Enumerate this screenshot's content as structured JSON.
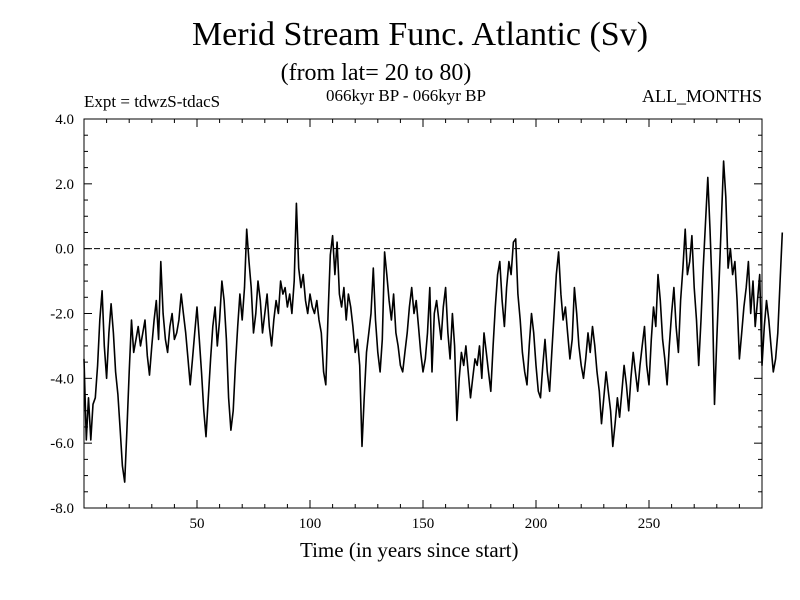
{
  "chart_data": {
    "type": "line",
    "title": "Merid Stream Func. Atlantic (Sv)",
    "subtitle": "(from lat= 20 to 80)",
    "annotations": {
      "expt": "Expt = tdwzS-tdacS",
      "period": "066kyr BP - 066kyr BP",
      "months": "ALL_MONTHS"
    },
    "xlabel": "Time (in years since start)",
    "ylabel": "",
    "xlim": [
      0,
      300
    ],
    "ylim": [
      -8.0,
      4.0
    ],
    "x_ticks": [
      50,
      100,
      150,
      200,
      250
    ],
    "x_tick_labels": [
      "50",
      "100",
      "150",
      "200",
      "250"
    ],
    "y_ticks": [
      -8,
      -6,
      -4,
      -2,
      0,
      2,
      4
    ],
    "y_tick_labels": [
      "-8.0",
      "-6.0",
      "-4.0",
      "-2.0",
      "0.0",
      "2.0",
      "4.0"
    ],
    "reference_line": {
      "y": 0.0,
      "style": "dashed"
    },
    "grid": false,
    "x_start": 0,
    "x_step": 1,
    "values": [
      -3.4,
      -5.9,
      -4.6,
      -5.9,
      -4.8,
      -4.6,
      -3.6,
      -2.2,
      -1.3,
      -3.0,
      -4.0,
      -2.6,
      -1.7,
      -2.6,
      -3.8,
      -4.5,
      -5.6,
      -6.7,
      -7.2,
      -5.6,
      -3.8,
      -2.2,
      -3.2,
      -2.8,
      -2.4,
      -3.0,
      -2.6,
      -2.2,
      -3.3,
      -3.9,
      -3.0,
      -2.2,
      -1.6,
      -2.8,
      -0.4,
      -2.0,
      -2.8,
      -3.2,
      -2.4,
      -2.0,
      -2.8,
      -2.6,
      -2.2,
      -1.4,
      -2.0,
      -2.6,
      -3.4,
      -4.2,
      -3.4,
      -2.6,
      -1.8,
      -2.8,
      -3.8,
      -5.0,
      -5.8,
      -4.6,
      -3.4,
      -2.4,
      -1.8,
      -3.0,
      -2.2,
      -1.0,
      -1.6,
      -2.8,
      -4.6,
      -5.6,
      -5.0,
      -3.6,
      -2.4,
      -1.4,
      -2.2,
      -1.2,
      0.6,
      -0.4,
      -1.2,
      -2.6,
      -2.0,
      -1.0,
      -1.6,
      -2.6,
      -2.0,
      -1.4,
      -2.4,
      -3.0,
      -2.2,
      -1.6,
      -2.0,
      -1.0,
      -1.4,
      -1.2,
      -1.8,
      -1.4,
      -2.0,
      -1.0,
      1.4,
      -0.6,
      -1.2,
      -0.8,
      -1.6,
      -2.0,
      -1.4,
      -1.8,
      -2.0,
      -1.6,
      -2.2,
      -2.6,
      -3.8,
      -4.2,
      -2.0,
      -0.2,
      0.4,
      -0.8,
      0.2,
      -1.4,
      -1.8,
      -1.2,
      -2.2,
      -1.4,
      -1.8,
      -2.4,
      -3.2,
      -2.8,
      -3.6,
      -6.1,
      -4.6,
      -3.2,
      -2.6,
      -2.0,
      -0.6,
      -2.2,
      -3.2,
      -3.8,
      -2.8,
      -0.1,
      -0.8,
      -1.6,
      -2.2,
      -1.4,
      -2.6,
      -3.0,
      -3.6,
      -3.8,
      -3.2,
      -2.6,
      -1.8,
      -1.2,
      -2.0,
      -1.6,
      -2.4,
      -3.2,
      -3.8,
      -3.4,
      -2.6,
      -1.2,
      -3.8,
      -2.0,
      -1.6,
      -2.2,
      -2.8,
      -1.8,
      -1.2,
      -2.6,
      -3.4,
      -2.0,
      -3.0,
      -5.3,
      -4.0,
      -3.2,
      -3.6,
      -3.0,
      -3.8,
      -4.6,
      -4.0,
      -3.4,
      -3.6,
      -3.0,
      -4.0,
      -2.6,
      -3.2,
      -3.8,
      -4.4,
      -3.0,
      -1.8,
      -0.8,
      -0.4,
      -1.6,
      -2.4,
      -1.2,
      -0.4,
      -0.8,
      0.2,
      0.3,
      -1.4,
      -2.2,
      -3.2,
      -3.8,
      -4.2,
      -3.0,
      -2.0,
      -2.6,
      -3.6,
      -4.4,
      -4.6,
      -3.6,
      -2.8,
      -3.8,
      -4.4,
      -3.2,
      -2.0,
      -0.8,
      -0.1,
      -1.4,
      -2.2,
      -1.8,
      -2.6,
      -3.4,
      -2.8,
      -1.2,
      -2.0,
      -3.0,
      -3.6,
      -4.0,
      -3.4,
      -2.6,
      -3.2,
      -2.4,
      -3.0,
      -3.8,
      -4.4,
      -5.4,
      -4.6,
      -3.8,
      -4.4,
      -5.0,
      -6.1,
      -5.4,
      -4.6,
      -5.2,
      -4.4,
      -3.6,
      -4.2,
      -5.0,
      -4.0,
      -3.2,
      -3.8,
      -4.4,
      -3.6,
      -3.0,
      -2.4,
      -3.6,
      -4.2,
      -2.8,
      -1.8,
      -2.4,
      -0.8,
      -1.6,
      -2.8,
      -3.4,
      -4.2,
      -3.0,
      -2.0,
      -1.2,
      -2.4,
      -3.2,
      -1.6,
      -0.6,
      0.6,
      -0.8,
      -0.4,
      0.4,
      -1.2,
      -2.2,
      -3.6,
      -2.2,
      -0.6,
      0.8,
      2.2,
      0.6,
      -1.4,
      -4.8,
      -2.8,
      -1.0,
      0.8,
      2.7,
      1.6,
      -0.6,
      0.0,
      -0.8,
      -0.4,
      -1.6,
      -3.4,
      -2.6,
      -1.8,
      -1.2,
      -0.4,
      -2.0,
      -1.0,
      -2.4,
      -1.6,
      -0.8,
      -3.6,
      -2.4,
      -1.6,
      -2.2,
      -3.0,
      -3.8,
      -3.4,
      -2.6,
      -1.0,
      0.5
    ]
  }
}
